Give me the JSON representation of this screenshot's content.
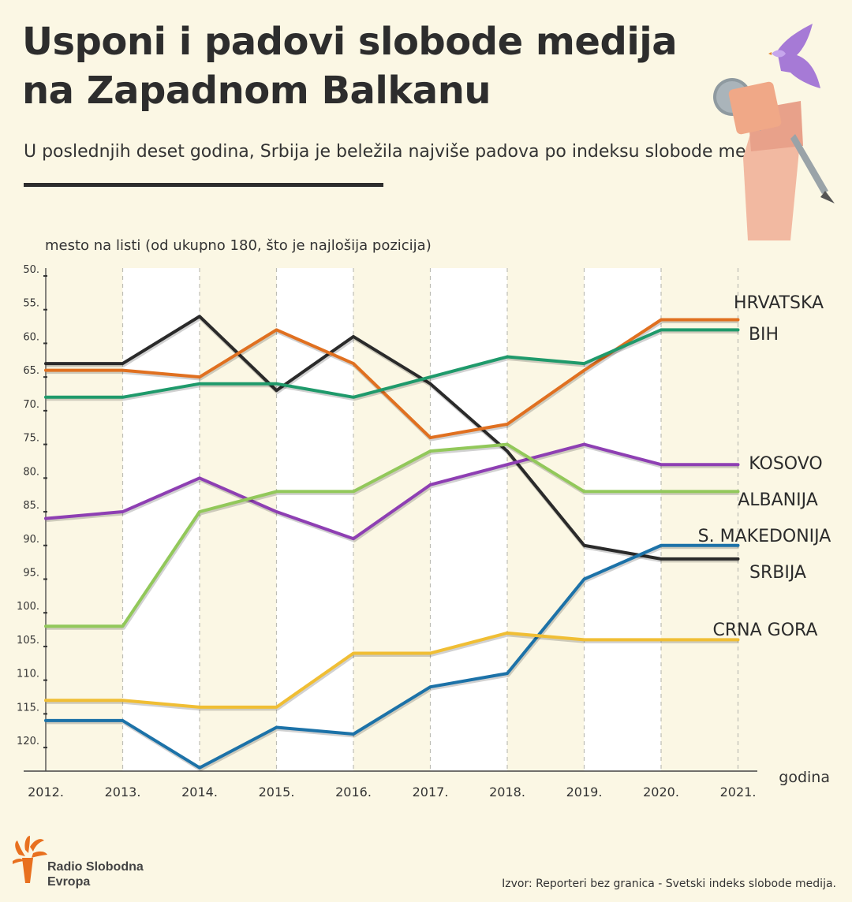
{
  "header": {
    "title_line1": "Usponi i padovi slobode medija",
    "title_line2": "na Zapadnom Balkanu",
    "subtitle": "U poslednjih deset godina, Srbija je beležila najviše padova po indeksu slobode medija."
  },
  "chart_data": {
    "type": "line",
    "ylabel": "mesto na listi (od ukupno 180, što je najlošija pozicija)",
    "xlabel": "godina",
    "x": [
      "2012.",
      "2013.",
      "2014.",
      "2015.",
      "2016.",
      "2017.",
      "2018.",
      "2019.",
      "2020.",
      "2021."
    ],
    "yticks": [
      "50.",
      "55.",
      "60.",
      "65.",
      "70.",
      "75.",
      "80.",
      "85.",
      "90.",
      "95.",
      "100.",
      "105.",
      "110.",
      "115.",
      "120."
    ],
    "ylim": [
      50,
      123.5
    ],
    "y_inverted": true,
    "grid": "vertical dashed",
    "series": [
      {
        "name": "SRBIJA",
        "color": "#2a2a2a",
        "values": [
          63,
          63,
          56,
          67,
          59,
          66,
          76,
          90,
          92,
          92
        ]
      },
      {
        "name": "HRVATSKA",
        "color": "#e07020",
        "values": [
          64,
          64,
          65,
          58,
          63,
          74,
          72,
          64,
          56.5,
          56.5
        ]
      },
      {
        "name": "BIH",
        "color": "#1f9a6b",
        "values": [
          68,
          68,
          66,
          66,
          68,
          65,
          62,
          63,
          58,
          58
        ]
      },
      {
        "name": "KOSOVO",
        "color": "#8e3fb3",
        "values": [
          86,
          85,
          80,
          85,
          89,
          81,
          78,
          75,
          78,
          78
        ]
      },
      {
        "name": "ALBANIJA",
        "color": "#92c85a",
        "values": [
          102,
          102,
          85,
          82,
          82,
          76,
          75,
          82,
          82,
          82
        ]
      },
      {
        "name": "S. MAKEDONIJA",
        "color": "#1c72a8",
        "values": [
          116,
          116,
          123,
          117,
          118,
          111,
          109,
          95,
          90,
          90
        ]
      },
      {
        "name": "CRNA GORA",
        "color": "#f0be34",
        "values": [
          113,
          113,
          114,
          114,
          106,
          106,
          103,
          104,
          104,
          104
        ]
      }
    ]
  },
  "footer": {
    "brand_line1": "Radio Slobodna",
    "brand_line2": "Evropa",
    "source": "Izvor: Reporteri bez granica - Svetski indeks slobode medija.",
    "brand_color": "#e8701f"
  }
}
